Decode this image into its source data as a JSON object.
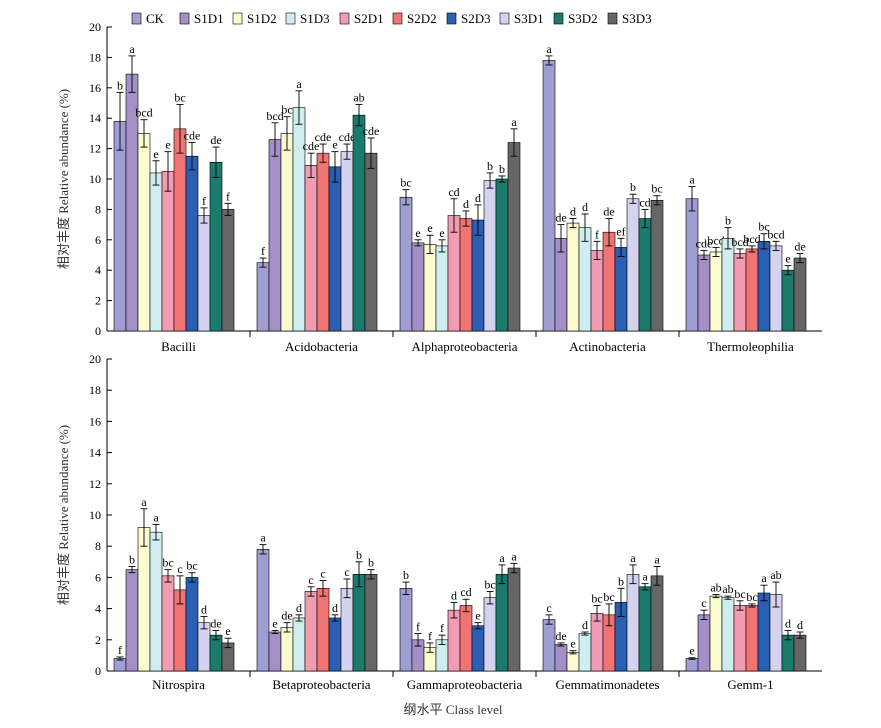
{
  "colors": {
    "CK": "#9f9ed2",
    "S1D1": "#a58fc7",
    "S1D2": "#fbfbcf",
    "S1D3": "#cfeef0",
    "S2D1": "#f29cb4",
    "S2D2": "#f07474",
    "S2D3": "#2b5fb4",
    "S3D1": "#d3d3ef",
    "S3D2": "#1a7a6c",
    "S3D3": "#666666"
  },
  "legend": {
    "placement": "top",
    "items": [
      "CK",
      "S1D1",
      "S1D2",
      "S1D3",
      "S2D1",
      "S2D2",
      "S2D3",
      "S3D1",
      "S3D2",
      "S3D3"
    ]
  },
  "xlabel": "纲水平 Class level",
  "chart_data": [
    {
      "type": "bar",
      "ylabel": "相对丰度 Relative abundance (%)",
      "ylim": [
        0,
        20
      ],
      "yticks": [
        0,
        2,
        4,
        6,
        8,
        10,
        12,
        14,
        16,
        18,
        20
      ],
      "grid": false,
      "series_names": [
        "CK",
        "S1D1",
        "S1D2",
        "S1D3",
        "S2D1",
        "S2D2",
        "S2D3",
        "S3D1",
        "S3D2",
        "S3D3"
      ],
      "categories": [
        {
          "name": "Bacilli",
          "values": [
            13.8,
            16.9,
            13.0,
            10.4,
            10.5,
            13.3,
            11.5,
            7.6,
            11.1,
            8.0
          ],
          "errors": [
            1.9,
            1.2,
            0.9,
            0.8,
            1.3,
            1.6,
            0.9,
            0.5,
            1.0,
            0.4
          ],
          "labels": [
            "b",
            "a",
            "bcd",
            "e",
            "e",
            "bc",
            "cde",
            "f",
            "de",
            "f"
          ]
        },
        {
          "name": "Acidobacteria",
          "values": [
            4.5,
            12.6,
            13.0,
            14.7,
            10.9,
            11.7,
            10.8,
            11.8,
            14.2,
            11.7
          ],
          "errors": [
            0.3,
            1.1,
            1.1,
            1.1,
            0.8,
            0.6,
            1.0,
            0.5,
            0.7,
            1.0
          ],
          "labels": [
            "f",
            "bcd",
            "bc",
            "a",
            "cde",
            "cde",
            "e",
            "cde",
            "ab",
            "cde"
          ]
        },
        {
          "name": "Alphaproteobacteria",
          "values": [
            8.8,
            5.8,
            5.7,
            5.6,
            7.6,
            7.4,
            7.3,
            9.9,
            10.0,
            12.4
          ],
          "errors": [
            0.5,
            0.2,
            0.6,
            0.4,
            1.1,
            0.5,
            1.0,
            0.5,
            0.2,
            0.9
          ],
          "labels": [
            "bc",
            "e",
            "e",
            "e",
            "cd",
            "d",
            "d",
            "b",
            "b",
            "a"
          ]
        },
        {
          "name": "Actinobacteria",
          "values": [
            17.8,
            6.1,
            7.1,
            6.8,
            5.3,
            6.5,
            5.5,
            8.7,
            7.4,
            8.6
          ],
          "errors": [
            0.3,
            0.9,
            0.3,
            0.9,
            0.6,
            0.9,
            0.6,
            0.3,
            0.6,
            0.3
          ],
          "labels": [
            "a",
            "de",
            "d",
            "d",
            "f",
            "de",
            "ef",
            "b",
            "cd",
            "bc"
          ]
        },
        {
          "name": "Thermoleophilia",
          "values": [
            8.7,
            5.0,
            5.2,
            6.1,
            5.1,
            5.4,
            5.9,
            5.6,
            4.0,
            4.8
          ],
          "errors": [
            0.8,
            0.3,
            0.3,
            0.7,
            0.3,
            0.2,
            0.5,
            0.3,
            0.3,
            0.3
          ],
          "labels": [
            "a",
            "cde",
            "bcd",
            "b",
            "bcd",
            "bcd",
            "bc",
            "bcd",
            "e",
            "de"
          ]
        }
      ]
    },
    {
      "type": "bar",
      "ylabel": "相对丰度 Relative abundance (%)",
      "ylim": [
        0,
        20
      ],
      "yticks": [
        0,
        2,
        4,
        6,
        8,
        10,
        12,
        14,
        16,
        18,
        20
      ],
      "grid": false,
      "series_names": [
        "CK",
        "S1D1",
        "S1D2",
        "S1D3",
        "S2D1",
        "S2D2",
        "S2D3",
        "S3D1",
        "S3D2",
        "S3D3"
      ],
      "categories": [
        {
          "name": "Nitrospira",
          "values": [
            0.8,
            6.5,
            9.2,
            8.9,
            6.1,
            5.2,
            6.0,
            3.1,
            2.3,
            1.8
          ],
          "errors": [
            0.1,
            0.2,
            1.2,
            0.5,
            0.4,
            0.9,
            0.3,
            0.4,
            0.3,
            0.3
          ],
          "labels": [
            "f",
            "b",
            "a",
            "a",
            "bc",
            "c",
            "bc",
            "d",
            "de",
            "e"
          ]
        },
        {
          "name": "Betaproteobacteria",
          "values": [
            7.8,
            2.5,
            2.8,
            3.4,
            5.1,
            5.3,
            3.4,
            5.3,
            6.2,
            6.2
          ],
          "errors": [
            0.3,
            0.1,
            0.3,
            0.2,
            0.3,
            0.5,
            0.2,
            0.6,
            0.8,
            0.3
          ],
          "labels": [
            "a",
            "e",
            "de",
            "d",
            "c",
            "c",
            "d",
            "c",
            "b",
            "b"
          ]
        },
        {
          "name": "Gammaproteobacteria",
          "values": [
            5.3,
            2.0,
            1.5,
            2.0,
            3.9,
            4.2,
            2.9,
            4.7,
            6.2,
            6.6
          ],
          "errors": [
            0.4,
            0.4,
            0.3,
            0.3,
            0.5,
            0.4,
            0.2,
            0.4,
            0.6,
            0.3
          ],
          "labels": [
            "b",
            "f",
            "f",
            "f",
            "d",
            "cd",
            "e",
            "bc",
            "a",
            "a"
          ]
        },
        {
          "name": "Gemmatimonadetes",
          "values": [
            3.3,
            1.7,
            1.2,
            2.4,
            3.7,
            3.6,
            4.4,
            6.2,
            5.4,
            6.1
          ],
          "errors": [
            0.3,
            0.1,
            0.1,
            0.1,
            0.5,
            0.7,
            0.9,
            0.6,
            0.2,
            0.6
          ],
          "labels": [
            "c",
            "de",
            "e",
            "d",
            "bc",
            "bc",
            "b",
            "a",
            "a",
            "a"
          ]
        },
        {
          "name": "Gemm-1",
          "values": [
            0.8,
            3.6,
            4.8,
            4.7,
            4.2,
            4.2,
            5.0,
            4.9,
            2.3,
            2.3
          ],
          "errors": [
            0.05,
            0.3,
            0.1,
            0.1,
            0.3,
            0.1,
            0.5,
            0.8,
            0.3,
            0.2
          ],
          "labels": [
            "e",
            "c",
            "ab",
            "ab",
            "bc",
            "bc",
            "a",
            "ab",
            "d",
            "d"
          ]
        }
      ]
    }
  ]
}
